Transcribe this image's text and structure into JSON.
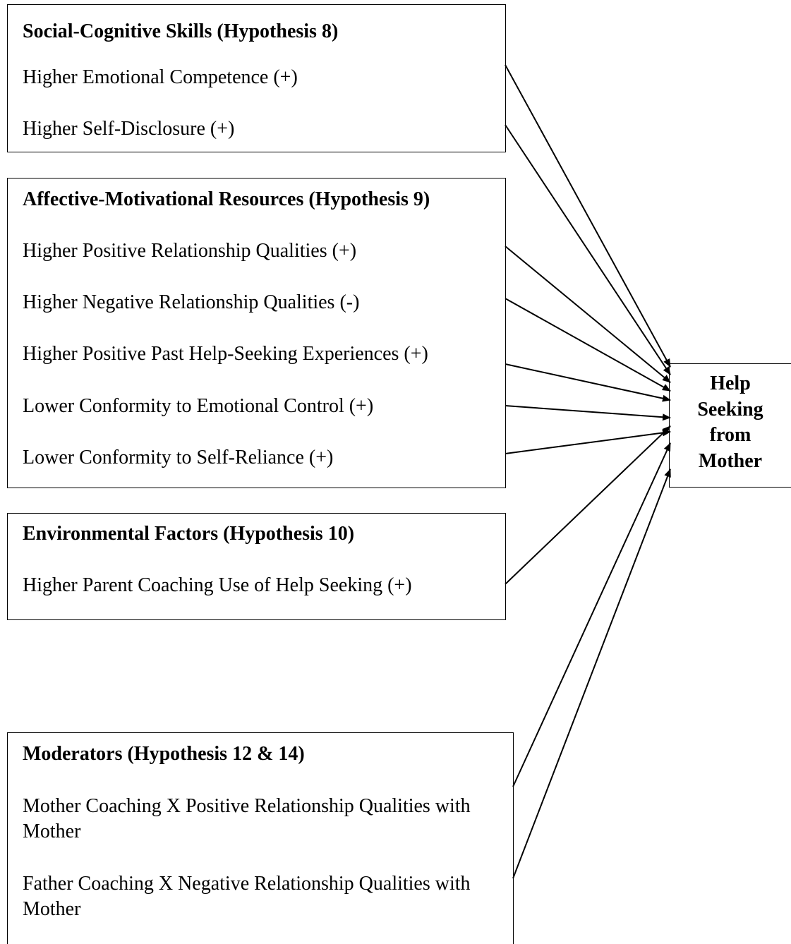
{
  "groups": [
    {
      "title": "Social-Cognitive Skills (Hypothesis 8)",
      "items": [
        "Higher Emotional Competence (+)",
        "Higher Self-Disclosure (+)"
      ]
    },
    {
      "title": "Affective-Motivational Resources (Hypothesis 9)",
      "items": [
        "Higher Positive Relationship Qualities (+)",
        "Higher Negative Relationship Qualities (-)",
        "Higher Positive Past Help-Seeking Experiences (+)",
        "Lower Conformity to Emotional Control (+)",
        "Lower Conformity to Self-Reliance (+)"
      ]
    },
    {
      "title": "Environmental Factors (Hypothesis 10)",
      "items": [
        "Higher Parent Coaching Use of Help Seeking (+)"
      ]
    },
    {
      "title": "Moderators (Hypothesis 12 & 14)",
      "items": [
        "Mother Coaching X Positive Relationship Qualities with Mother",
        "Father Coaching X Negative Relationship Qualities with Mother"
      ]
    }
  ],
  "outcome": {
    "label": "Help Seeking from Mother"
  }
}
